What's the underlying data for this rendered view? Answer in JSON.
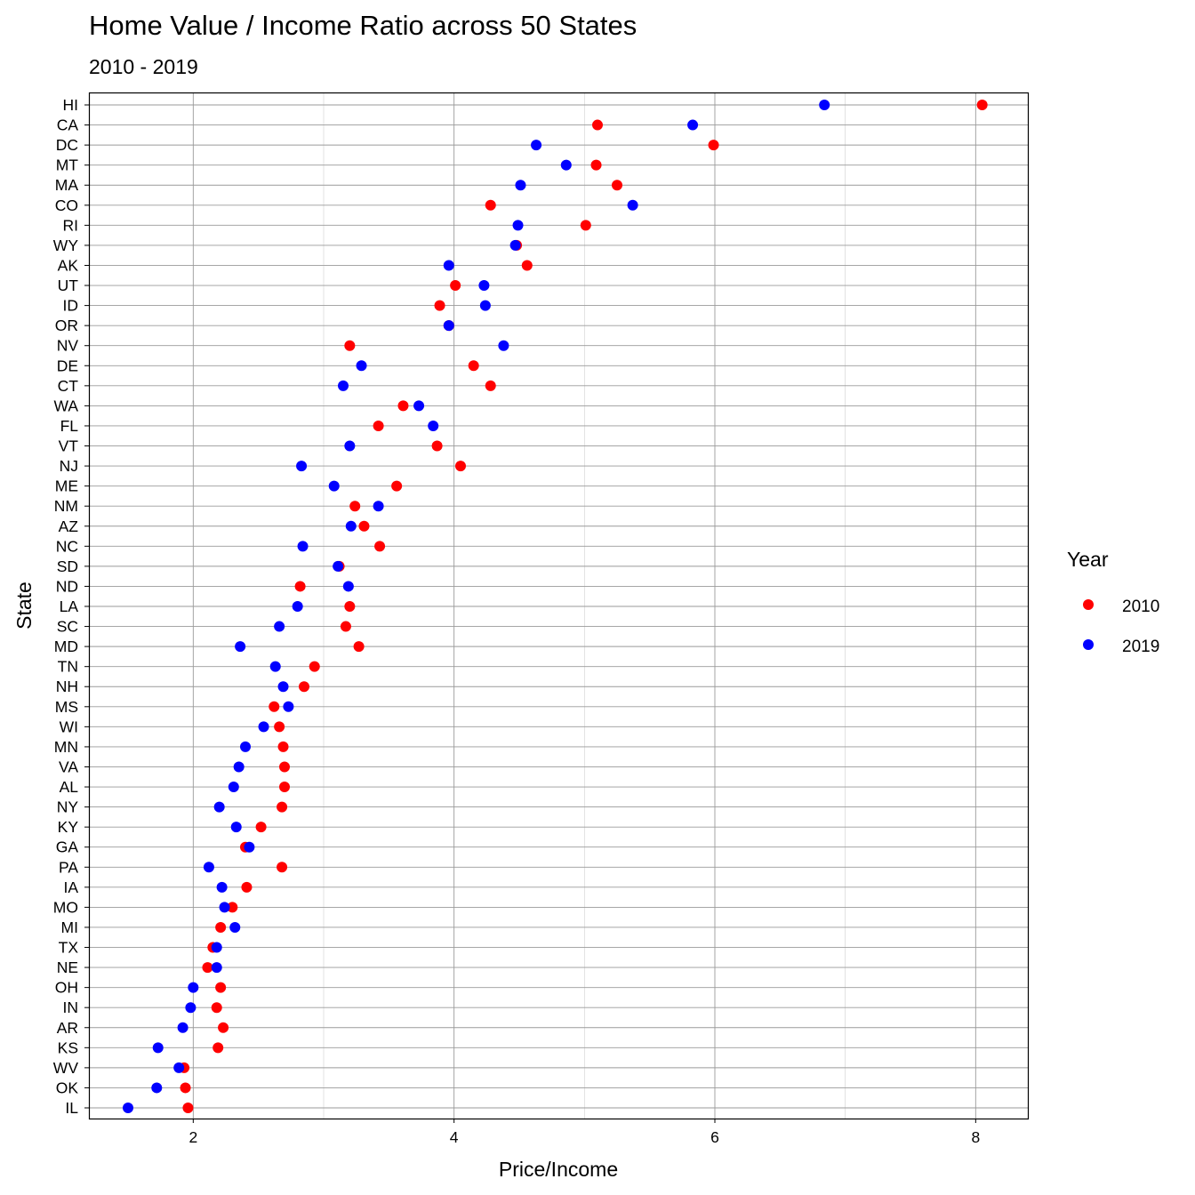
{
  "chart_data": {
    "type": "scatter",
    "title": "Home Value / Income Ratio across 50 States",
    "subtitle": "2010 - 2019",
    "xlabel": "Price/Income",
    "ylabel": "State",
    "xlim": [
      1.2,
      8.4
    ],
    "x_ticks": [
      2,
      4,
      6,
      8
    ],
    "grid": true,
    "legend": {
      "title": "Year",
      "position": "right"
    },
    "categories": [
      "HI",
      "CA",
      "DC",
      "MT",
      "MA",
      "CO",
      "RI",
      "WY",
      "AK",
      "UT",
      "ID",
      "OR",
      "NV",
      "DE",
      "CT",
      "WA",
      "FL",
      "VT",
      "NJ",
      "ME",
      "NM",
      "AZ",
      "NC",
      "SD",
      "ND",
      "LA",
      "SC",
      "MD",
      "TN",
      "NH",
      "MS",
      "WI",
      "MN",
      "VA",
      "AL",
      "NY",
      "KY",
      "GA",
      "PA",
      "IA",
      "MO",
      "MI",
      "TX",
      "NE",
      "OH",
      "IN",
      "AR",
      "KS",
      "WV",
      "OK",
      "IL"
    ],
    "series": [
      {
        "name": "2010",
        "color": "#ff0000",
        "values": [
          8.05,
          5.1,
          5.99,
          5.09,
          5.25,
          4.28,
          5.01,
          4.48,
          4.56,
          4.01,
          3.89,
          3.96,
          3.2,
          4.15,
          4.28,
          3.61,
          3.42,
          3.87,
          4.05,
          3.56,
          3.24,
          3.31,
          3.43,
          3.12,
          2.82,
          3.2,
          3.17,
          3.27,
          2.93,
          2.85,
          2.62,
          2.66,
          2.69,
          2.7,
          2.7,
          2.68,
          2.52,
          2.4,
          2.68,
          2.41,
          2.3,
          2.21,
          2.15,
          2.11,
          2.21,
          2.18,
          2.23,
          2.19,
          1.93,
          1.94,
          1.96
        ]
      },
      {
        "name": "2019",
        "color": "#0000ff",
        "values": [
          6.84,
          5.83,
          4.63,
          4.86,
          4.51,
          5.37,
          4.49,
          4.47,
          3.96,
          4.23,
          4.24,
          3.96,
          4.38,
          3.29,
          3.15,
          3.73,
          3.84,
          3.2,
          2.83,
          3.08,
          3.42,
          3.21,
          2.84,
          3.11,
          3.19,
          2.8,
          2.66,
          2.36,
          2.63,
          2.69,
          2.73,
          2.54,
          2.4,
          2.35,
          2.31,
          2.2,
          2.33,
          2.43,
          2.12,
          2.22,
          2.24,
          2.32,
          2.18,
          2.18,
          2.0,
          1.98,
          1.92,
          1.73,
          1.89,
          1.72,
          1.5
        ]
      }
    ]
  }
}
